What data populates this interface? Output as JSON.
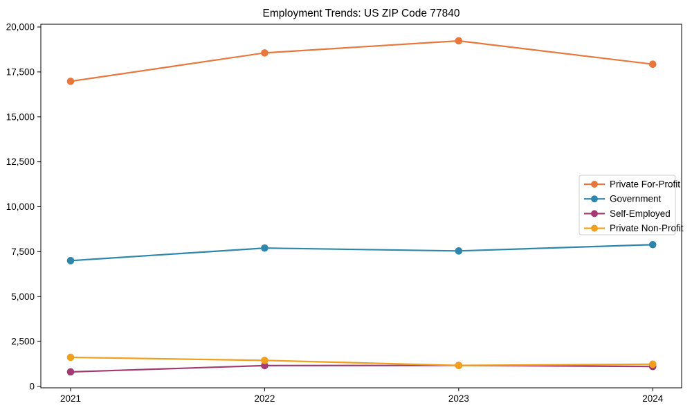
{
  "chart_data": {
    "type": "line",
    "title": "Employment Trends: US ZIP Code 77840",
    "xlabel": "",
    "ylabel": "",
    "x": [
      2021,
      2022,
      2023,
      2024
    ],
    "xtick_labels": [
      "2021",
      "2022",
      "2023",
      "2024"
    ],
    "ytick_values": [
      0,
      2500,
      5000,
      7500,
      10000,
      12500,
      15000,
      17500,
      20000
    ],
    "ytick_labels": [
      "0",
      "2,500",
      "5,000",
      "7,500",
      "10,000",
      "12,500",
      "15,000",
      "17,500",
      "20,000"
    ],
    "ylim": [
      0,
      20000
    ],
    "grid": false,
    "legend_position": "center-right",
    "marker": "circle",
    "series": [
      {
        "name": "Private For-Profit",
        "color": "#E8773D",
        "values": [
          16980,
          18560,
          19230,
          17930
        ]
      },
      {
        "name": "Government",
        "color": "#2E86AB",
        "values": [
          7000,
          7700,
          7540,
          7890
        ]
      },
      {
        "name": "Self-Employed",
        "color": "#A23B72",
        "values": [
          810,
          1160,
          1170,
          1110
        ]
      },
      {
        "name": "Private Non-Profit",
        "color": "#F0A01E",
        "values": [
          1620,
          1450,
          1170,
          1240
        ]
      }
    ]
  }
}
